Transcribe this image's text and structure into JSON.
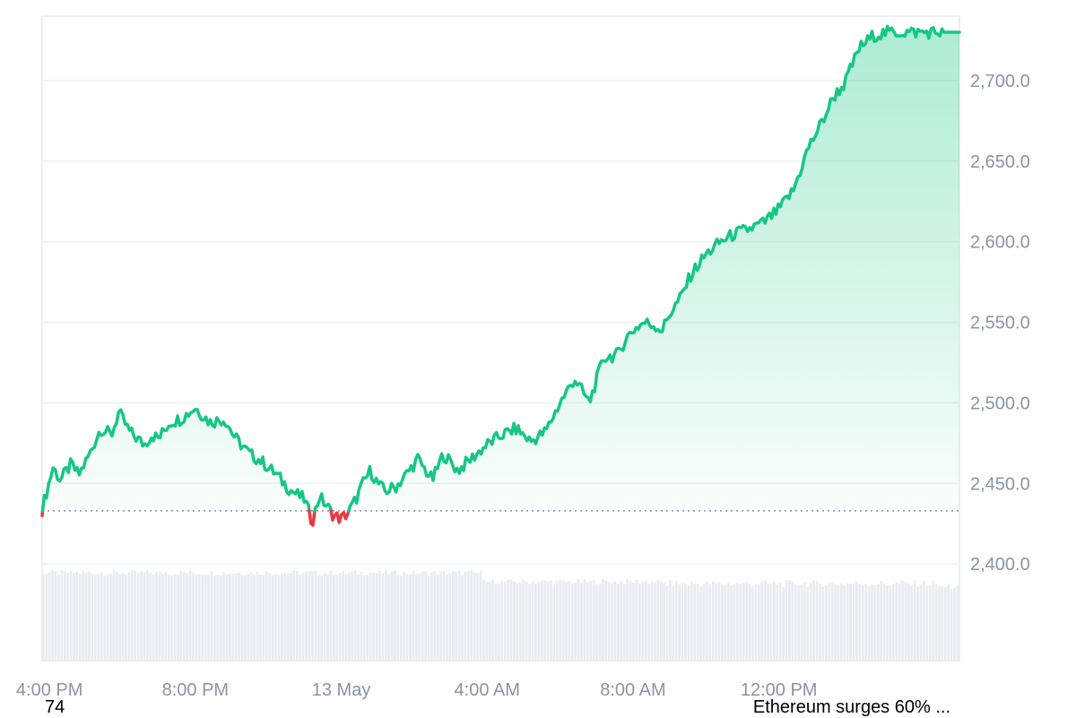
{
  "chart_data": {
    "type": "area",
    "baseline": 2433,
    "ylim": [
      2340,
      2740
    ],
    "y_ticks": [
      "2,700.0",
      "2,650.0",
      "2,600.0",
      "2,550.0",
      "2,500.0",
      "2,450.0",
      "2,400.0"
    ],
    "y_tick_values": [
      2700,
      2650,
      2600,
      2550,
      2500,
      2450,
      2400
    ],
    "x_ticks": [
      "4:00 PM",
      "8:00 PM",
      "13 May",
      "4:00 AM",
      "8:00 AM",
      "12:00 PM"
    ],
    "x_tick_hours": [
      0.2,
      4.2,
      8.2,
      12.2,
      16.2,
      20.2
    ],
    "x_range_hours": [
      0,
      25.15
    ],
    "series": [
      {
        "values_x": [
          0,
          0.3,
          0.5,
          0.8,
          1.0,
          1.3,
          1.6,
          1.9,
          2.1,
          2.4,
          2.6,
          2.8,
          3.0,
          3.2,
          3.5,
          3.8,
          4.2,
          4.6,
          5.0,
          5.3,
          5.7,
          6.0,
          6.4,
          6.8,
          7.2,
          7.4,
          7.6,
          7.8,
          8.0,
          8.2,
          8.4,
          8.6,
          8.8,
          9.0,
          9.2,
          9.4,
          9.7,
          10.0,
          10.3,
          10.7,
          11.0,
          11.4,
          11.8,
          12.2,
          12.6,
          13.0,
          13.4,
          13.8,
          14.2,
          14.6,
          15.0,
          15.4,
          15.8,
          16.0,
          16.2,
          16.5,
          16.8,
          17.0,
          17.2,
          17.5,
          17.8,
          18.2,
          18.6,
          19.0,
          19.4,
          19.8,
          20.2,
          20.6,
          21.0,
          21.4,
          21.7,
          22.0,
          22.4,
          22.8,
          23.2,
          23.6,
          24.0,
          24.3,
          24.6,
          24.8,
          25.0,
          25.15
        ],
        "values_y": [
          2434,
          2460,
          2452,
          2462,
          2455,
          2468,
          2484,
          2480,
          2494,
          2482,
          2478,
          2474,
          2480,
          2478,
          2488,
          2490,
          2497,
          2488,
          2490,
          2478,
          2468,
          2464,
          2456,
          2446,
          2440,
          2426,
          2442,
          2436,
          2430,
          2428,
          2432,
          2440,
          2450,
          2458,
          2450,
          2445,
          2448,
          2456,
          2465,
          2452,
          2468,
          2458,
          2466,
          2474,
          2480,
          2484,
          2476,
          2482,
          2500,
          2515,
          2500,
          2528,
          2530,
          2540,
          2545,
          2550,
          2548,
          2545,
          2555,
          2565,
          2580,
          2592,
          2600,
          2605,
          2608,
          2612,
          2620,
          2632,
          2658,
          2675,
          2690,
          2698,
          2720,
          2728,
          2730,
          2730,
          2730,
          2730,
          2730,
          2730,
          2730,
          2730
        ]
      }
    ],
    "volume_note": "volume bars shown beneath line",
    "colors": {
      "up": "#16c784",
      "down": "#ea3943",
      "grid": "#eef0f3",
      "baseline": "#8a93a6",
      "volume": "#e9ecf1"
    }
  },
  "footer": {
    "left_text": "74",
    "right_text": "Ethereum surges 60% ..."
  }
}
